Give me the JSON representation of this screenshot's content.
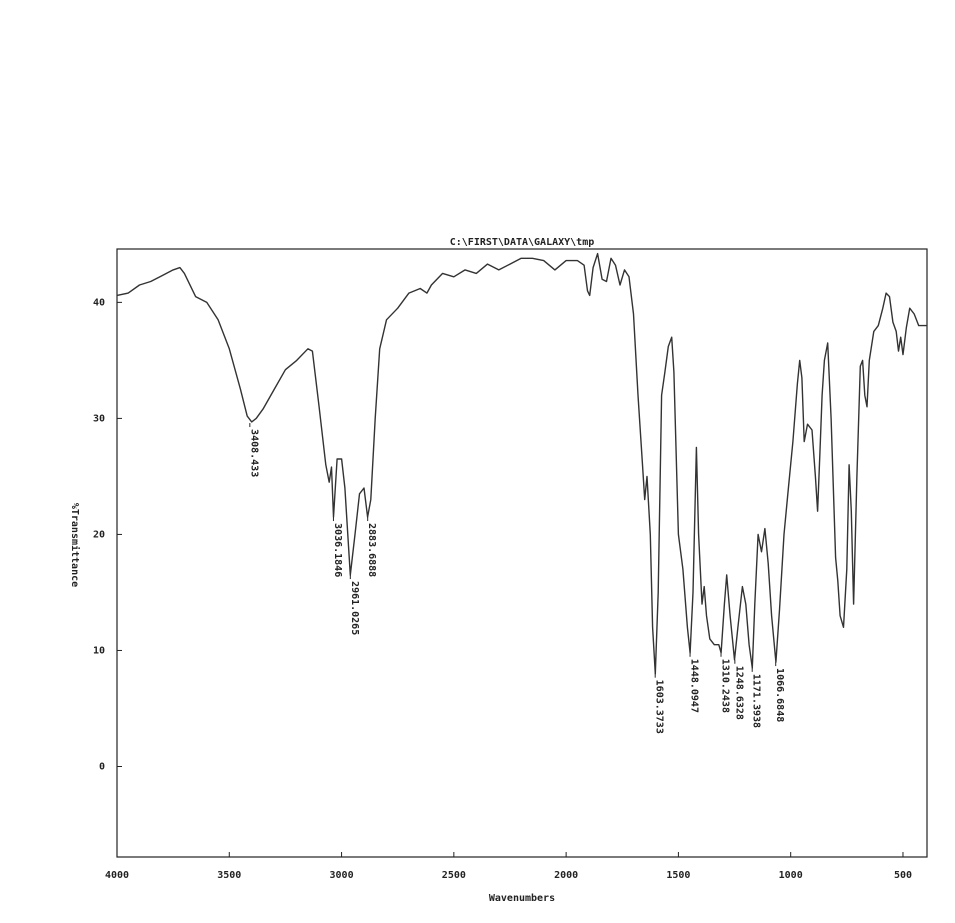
{
  "chart_data": {
    "type": "line",
    "title": "C:\\FIRST\\DATA\\GALAXY\\tmp",
    "x_label": "Wavenumbers",
    "y_label": "%Transmittance",
    "xlim": [
      4000,
      393
    ],
    "ylim": [
      -7.8,
      44.6
    ],
    "xticks": [
      4000,
      3500,
      3000,
      2500,
      2000,
      1500,
      1000,
      500
    ],
    "yticks": [
      0,
      10,
      20,
      30,
      40
    ],
    "color": "#333333",
    "x": [
      4000,
      3950,
      3900,
      3850,
      3800,
      3750,
      3720,
      3700,
      3650,
      3600,
      3550,
      3500,
      3450,
      3420,
      3400,
      3380,
      3350,
      3300,
      3250,
      3200,
      3150,
      3130,
      3100,
      3070,
      3055,
      3045,
      3036,
      3020,
      3000,
      2985,
      2961,
      2940,
      2920,
      2900,
      2884,
      2870,
      2850,
      2830,
      2800,
      2750,
      2700,
      2650,
      2620,
      2600,
      2550,
      2500,
      2450,
      2400,
      2350,
      2300,
      2250,
      2200,
      2150,
      2100,
      2050,
      2000,
      1950,
      1920,
      1905,
      1895,
      1880,
      1860,
      1840,
      1820,
      1800,
      1780,
      1760,
      1740,
      1720,
      1700,
      1680,
      1660,
      1650,
      1640,
      1625,
      1615,
      1603,
      1590,
      1575,
      1560,
      1545,
      1530,
      1520,
      1500,
      1480,
      1460,
      1448,
      1435,
      1420,
      1410,
      1395,
      1385,
      1375,
      1360,
      1340,
      1320,
      1310,
      1295,
      1285,
      1270,
      1250,
      1235,
      1215,
      1200,
      1185,
      1171,
      1160,
      1145,
      1130,
      1115,
      1100,
      1085,
      1066,
      1050,
      1030,
      1010,
      990,
      970,
      960,
      950,
      940,
      925,
      905,
      890,
      880,
      870,
      860,
      850,
      835,
      820,
      800,
      790,
      780,
      765,
      750,
      740,
      730,
      720,
      705,
      690,
      680,
      670,
      660,
      650,
      630,
      610,
      590,
      575,
      560,
      545,
      530,
      520,
      510,
      500,
      485,
      470,
      450,
      430,
      400,
      393
    ],
    "values": [
      40.6,
      40.8,
      41.5,
      41.8,
      42.3,
      42.8,
      43.0,
      42.5,
      40.5,
      40.0,
      38.5,
      36,
      32.5,
      30.2,
      29.7,
      30,
      30.8,
      32.5,
      34.2,
      35,
      36,
      35.8,
      31,
      26,
      24.5,
      25.8,
      21.5,
      26.5,
      26.5,
      24,
      16.5,
      20,
      23.5,
      24,
      21.5,
      23,
      30,
      36,
      38.5,
      39.5,
      40.8,
      41.2,
      40.8,
      41.5,
      42.5,
      42.2,
      42.8,
      42.5,
      43.3,
      42.8,
      43.3,
      43.8,
      43.8,
      43.6,
      42.8,
      43.6,
      43.6,
      43.2,
      41,
      40.6,
      43,
      44.2,
      42,
      41.8,
      43.8,
      43.2,
      41.5,
      42.8,
      42.2,
      39,
      32,
      26,
      23,
      25,
      20,
      12,
      8,
      15,
      32,
      34,
      36.2,
      37,
      34,
      20,
      17,
      12,
      9.8,
      15,
      27.5,
      20,
      14,
      15.5,
      13,
      11,
      10.5,
      10.5,
      9.8,
      14,
      16.5,
      13,
      9.2,
      12,
      15.5,
      14,
      10.5,
      8.5,
      14,
      20,
      18.5,
      20.5,
      17.5,
      13,
      9,
      13.5,
      20,
      24,
      28,
      33,
      35,
      33.5,
      28,
      29.5,
      29,
      25,
      22,
      27,
      32,
      35,
      36.5,
      30,
      18,
      16,
      13,
      12,
      17,
      26,
      22,
      14,
      25,
      34.5,
      35,
      32,
      31,
      35,
      37.5,
      38,
      39.5,
      40.8,
      40.5,
      38.3,
      37.5,
      35.8,
      37,
      35.5,
      37.8,
      39.5,
      39,
      38,
      38,
      38
    ],
    "peaks": {
      "x": [
        3408.433,
        3036.1846,
        2961.0265,
        2883.6888,
        1603.3733,
        1448.0947,
        1310.2438,
        1248.6328,
        1171.3938,
        1066.6848
      ],
      "y": [
        29.6,
        21.5,
        16.5,
        21.5,
        8,
        9.8,
        9.8,
        9.2,
        8.5,
        9
      ]
    }
  }
}
